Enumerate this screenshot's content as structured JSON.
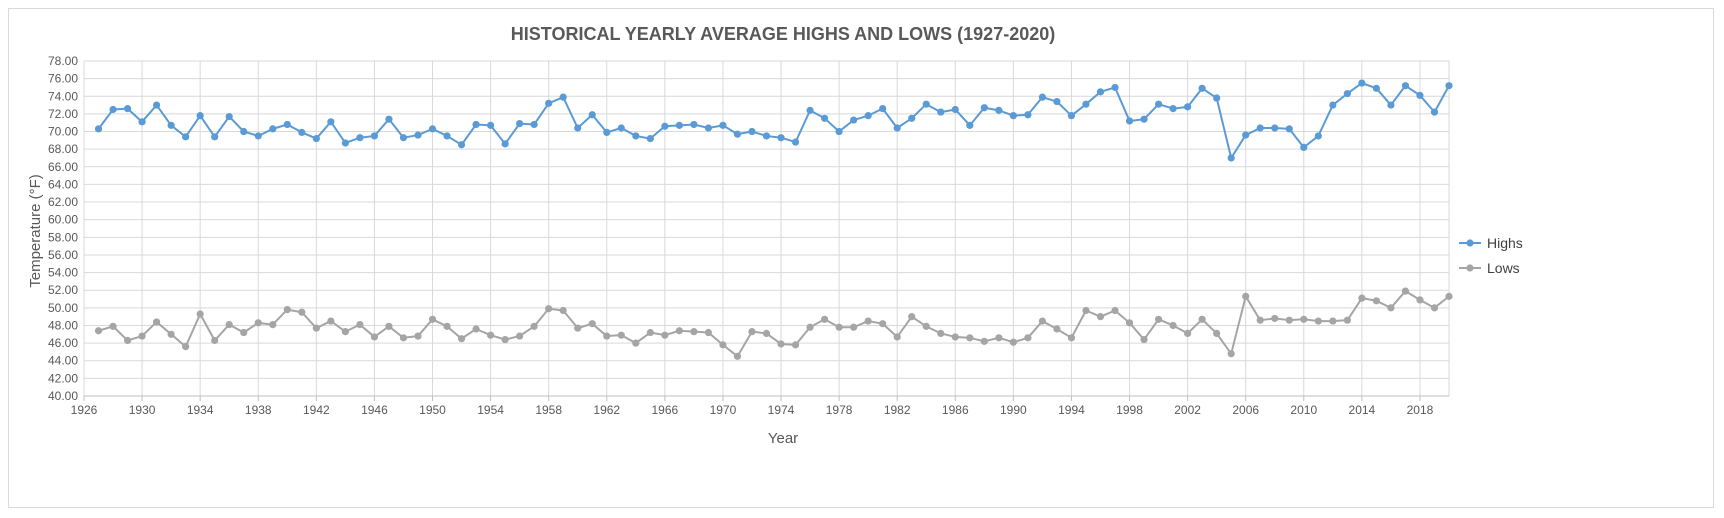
{
  "chart_data": {
    "type": "line",
    "title": "HISTORICAL YEARLY AVERAGE HIGHS AND LOWS (1927-2020)",
    "xlabel": "Year",
    "ylabel": "Temperature  (°F)",
    "xlim": [
      1926,
      2020
    ],
    "ylim": [
      40,
      78
    ],
    "y_ticks": [
      "40.00",
      "42.00",
      "44.00",
      "46.00",
      "48.00",
      "50.00",
      "52.00",
      "54.00",
      "56.00",
      "58.00",
      "60.00",
      "62.00",
      "64.00",
      "66.00",
      "68.00",
      "70.00",
      "72.00",
      "74.00",
      "76.00",
      "78.00"
    ],
    "x_ticks": [
      "1926",
      "1930",
      "1934",
      "1938",
      "1942",
      "1946",
      "1950",
      "1954",
      "1958",
      "1962",
      "1966",
      "1970",
      "1974",
      "1978",
      "1982",
      "1986",
      "1990",
      "1994",
      "1998",
      "2002",
      "2006",
      "2010",
      "2014",
      "2018"
    ],
    "grid": true,
    "legend_position": "right",
    "x": [
      1927,
      1928,
      1929,
      1930,
      1931,
      1932,
      1933,
      1934,
      1935,
      1936,
      1937,
      1938,
      1939,
      1940,
      1941,
      1942,
      1943,
      1944,
      1945,
      1946,
      1947,
      1948,
      1949,
      1950,
      1951,
      1952,
      1953,
      1954,
      1955,
      1956,
      1957,
      1958,
      1959,
      1960,
      1961,
      1962,
      1963,
      1964,
      1965,
      1966,
      1967,
      1968,
      1969,
      1970,
      1971,
      1972,
      1973,
      1974,
      1975,
      1976,
      1977,
      1978,
      1979,
      1980,
      1981,
      1982,
      1983,
      1984,
      1985,
      1986,
      1987,
      1988,
      1989,
      1990,
      1991,
      1992,
      1993,
      1994,
      1995,
      1996,
      1997,
      1998,
      1999,
      2000,
      2001,
      2002,
      2003,
      2004,
      2005,
      2006,
      2007,
      2008,
      2009,
      2010,
      2011,
      2012,
      2013,
      2014,
      2015,
      2016,
      2017,
      2018,
      2019,
      2020
    ],
    "series": [
      {
        "name": "Highs",
        "color": "#5b9bd5",
        "values": [
          70.3,
          72.5,
          72.6,
          71.1,
          73.0,
          70.7,
          69.4,
          71.8,
          69.4,
          71.7,
          70.0,
          69.5,
          70.3,
          70.8,
          69.9,
          69.2,
          71.1,
          68.7,
          69.3,
          69.5,
          71.4,
          69.3,
          69.6,
          70.3,
          69.5,
          68.5,
          70.8,
          70.7,
          68.6,
          70.9,
          70.8,
          73.2,
          73.9,
          70.4,
          71.9,
          69.9,
          70.4,
          69.5,
          69.2,
          70.6,
          70.7,
          70.8,
          70.4,
          70.7,
          69.7,
          70.0,
          69.5,
          69.3,
          68.8,
          72.4,
          71.5,
          70.0,
          71.3,
          71.8,
          72.6,
          70.4,
          71.5,
          73.1,
          72.2,
          72.5,
          70.7,
          72.7,
          72.4,
          71.8,
          71.9,
          73.9,
          73.4,
          71.8,
          73.1,
          74.5,
          75.0,
          71.2,
          71.4,
          73.1,
          72.6,
          72.8,
          74.9,
          73.8,
          67.0,
          69.6,
          70.4,
          70.4,
          70.3,
          68.2,
          69.5,
          73.0,
          74.3,
          75.5,
          74.9,
          73.0,
          75.2,
          74.1,
          72.2,
          75.2
        ]
      },
      {
        "name": "Lows",
        "color": "#a5a5a5",
        "values": [
          47.4,
          47.9,
          46.3,
          46.8,
          48.4,
          47.0,
          45.6,
          49.3,
          46.3,
          48.1,
          47.2,
          48.3,
          48.1,
          49.8,
          49.5,
          47.7,
          48.5,
          47.3,
          48.1,
          46.7,
          47.9,
          46.6,
          46.8,
          48.7,
          47.9,
          46.5,
          47.6,
          46.9,
          46.4,
          46.8,
          47.9,
          49.9,
          49.7,
          47.7,
          48.2,
          46.8,
          46.9,
          46.0,
          47.2,
          46.9,
          47.4,
          47.3,
          47.2,
          45.8,
          44.5,
          47.3,
          47.1,
          45.9,
          45.8,
          47.8,
          48.7,
          47.8,
          47.8,
          48.5,
          48.2,
          46.7,
          49.0,
          47.9,
          47.1,
          46.7,
          46.6,
          46.2,
          46.6,
          46.1,
          46.6,
          48.5,
          47.6,
          46.6,
          49.7,
          49.0,
          49.7,
          48.3,
          46.4,
          48.7,
          48.0,
          47.1,
          48.7,
          47.1,
          44.8,
          51.3,
          48.6,
          48.8,
          48.6,
          48.7,
          48.5,
          48.5,
          48.6,
          51.1,
          50.8,
          50.0,
          51.9,
          50.9,
          50.0,
          51.3
        ]
      }
    ]
  }
}
